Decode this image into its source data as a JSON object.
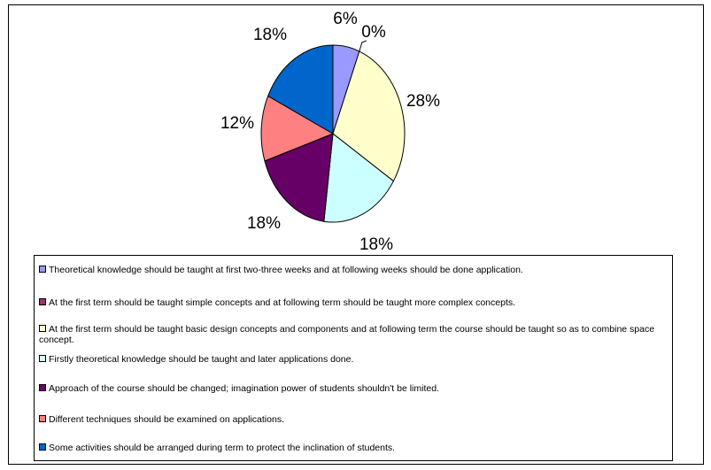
{
  "chart_data": {
    "type": "pie",
    "title": "",
    "slices": [
      {
        "label": "6%",
        "value": 6,
        "color": "#9999FF",
        "legend": "Theoretical knowledge should be taught at first two-three weeks and at following weeks should be done application."
      },
      {
        "label": "0%",
        "value": 0,
        "color": "#993366",
        "legend": "At the first term should be taught simple concepts and at following term should be taught more complex concepts."
      },
      {
        "label": "28%",
        "value": 28,
        "color": "#FFFFCC",
        "legend": "At the first term should be taught basic design concepts and components and at following term the course should be taught so as to combine space concept."
      },
      {
        "label": "18%",
        "value": 18,
        "color": "#CCFFFF",
        "legend": "Firstly theoretical knowledge should be taught and later applications done."
      },
      {
        "label": "18%",
        "value": 18,
        "color": "#660066",
        "legend": "Approach of the course should be changed; imagination power of students shouldn't be limited."
      },
      {
        "label": "12%",
        "value": 12,
        "color": "#FF8080",
        "legend": "Different techniques should be examined on applications."
      },
      {
        "label": "18%",
        "value": 18,
        "color": "#0066CC",
        "legend": "Some activities should be arranged during term to protect the inclination of students."
      }
    ],
    "legend_position": "bottom"
  }
}
